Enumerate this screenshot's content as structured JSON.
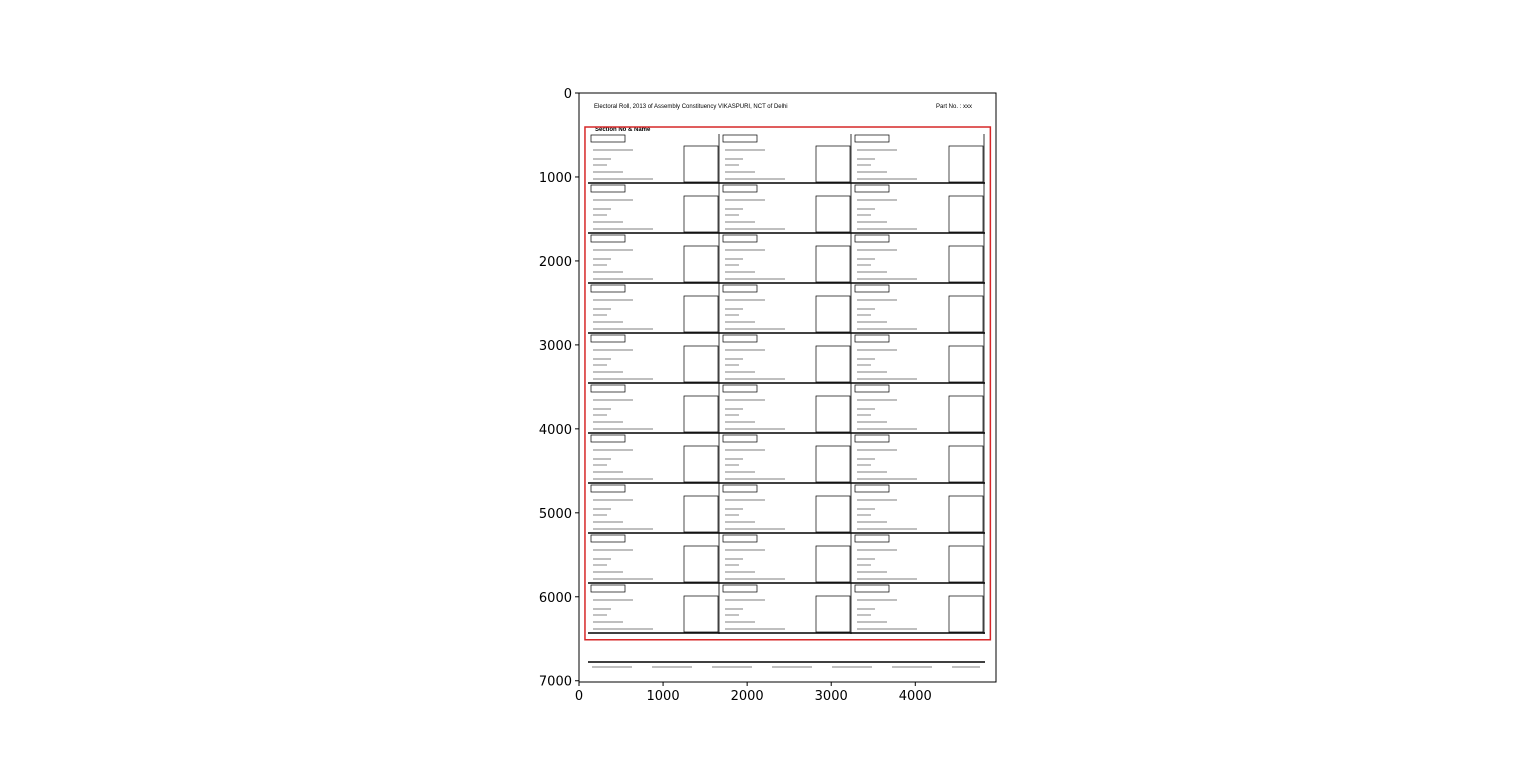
{
  "chart_data": {
    "type": "image",
    "xlim": [
      0,
      4960
    ],
    "ylim": [
      7015,
      0
    ],
    "xticks": [
      0,
      1000,
      2000,
      3000,
      4000
    ],
    "yticks": [
      0,
      1000,
      2000,
      3000,
      4000,
      5000,
      6000,
      7000
    ],
    "box": {
      "x": [
        71,
        4893
      ],
      "y": [
        405,
        6512
      ],
      "color": "#d62728"
    },
    "document": {
      "header": "Electoral Roll, 2013 of Assembly Constituency VIKASPURI, NCT of Delhi",
      "part": "Part No. : xxx",
      "section": "Section No & Name"
    }
  }
}
